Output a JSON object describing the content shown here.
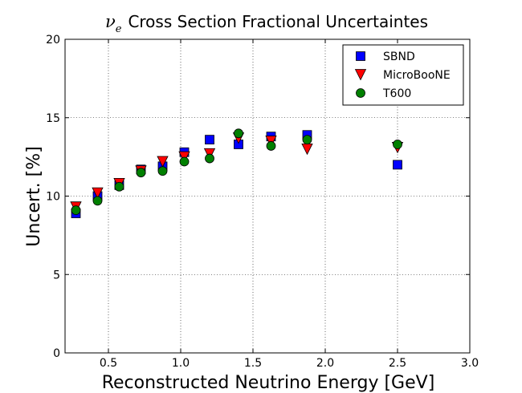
{
  "chart_data": {
    "type": "scatter",
    "title": {
      "symbol": "ν",
      "subscript": "e",
      "text": "Cross Section Fractional Uncertaintes"
    },
    "xlabel": "Reconstructed Neutrino Energy [GeV]",
    "ylabel": "Uncert. [%]",
    "xlim": [
      0.2,
      3.0
    ],
    "ylim": [
      0,
      20
    ],
    "xticks": [
      0.5,
      1.0,
      1.5,
      2.0,
      2.5,
      3.0
    ],
    "xtick_labels": [
      "0.5",
      "1.0",
      "1.5",
      "2.0",
      "2.5",
      "3.0"
    ],
    "yticks": [
      0,
      5,
      10,
      15,
      20
    ],
    "ytick_labels": [
      "0",
      "5",
      "10",
      "15",
      "20"
    ],
    "grid": true,
    "legend_position": "top-right",
    "series": [
      {
        "name": "SBND",
        "marker": "square",
        "color": "#0000ff",
        "x": [
          0.275,
          0.425,
          0.575,
          0.725,
          0.875,
          1.025,
          1.2,
          1.4,
          1.625,
          1.875,
          2.5
        ],
        "y": [
          8.9,
          10.0,
          10.7,
          11.7,
          11.9,
          12.8,
          13.6,
          13.3,
          13.8,
          13.9,
          12.0
        ]
      },
      {
        "name": "MicroBooNE",
        "marker": "triangle-down",
        "color": "#ff0000",
        "x": [
          0.275,
          0.425,
          0.575,
          0.725,
          0.875,
          1.025,
          1.2,
          1.4,
          1.625,
          1.875,
          2.5
        ],
        "y": [
          9.3,
          10.2,
          10.8,
          11.6,
          12.2,
          12.5,
          12.7,
          13.7,
          13.5,
          13.0,
          13.1
        ]
      },
      {
        "name": "T600",
        "marker": "circle",
        "color": "#008000",
        "x": [
          0.275,
          0.425,
          0.575,
          0.725,
          0.875,
          1.025,
          1.2,
          1.4,
          1.625,
          1.875,
          2.5
        ],
        "y": [
          9.1,
          9.7,
          10.6,
          11.5,
          11.6,
          12.2,
          12.4,
          14.0,
          13.2,
          13.6,
          13.3
        ]
      }
    ]
  }
}
